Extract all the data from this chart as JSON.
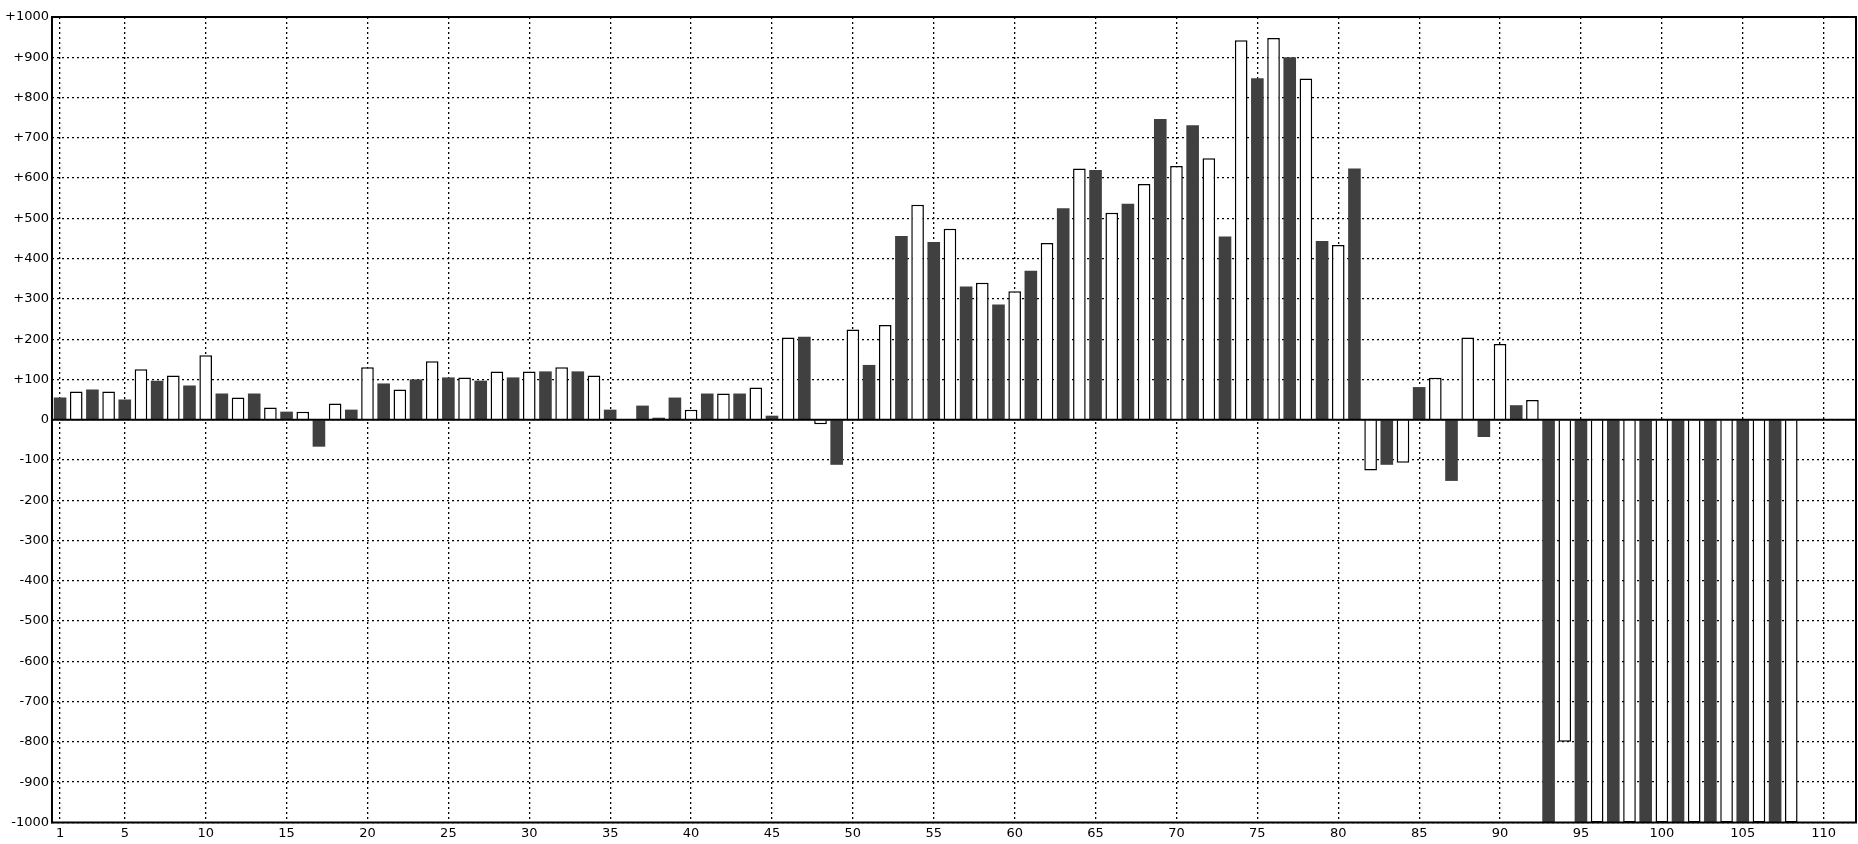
{
  "chart_data": {
    "type": "bar",
    "x": [
      1,
      2,
      3,
      4,
      5,
      6,
      7,
      8,
      9,
      10,
      11,
      12,
      13,
      14,
      15,
      16,
      17,
      18,
      19,
      20,
      21,
      22,
      23,
      24,
      25,
      26,
      27,
      28,
      29,
      30,
      31,
      32,
      33,
      34,
      35,
      36,
      37,
      38,
      39,
      40,
      41,
      42,
      43,
      44,
      45,
      46,
      47,
      48,
      49,
      50,
      51,
      52,
      53,
      54,
      55,
      56,
      57,
      58,
      59,
      60,
      61,
      62,
      63,
      64,
      65,
      66,
      67,
      68,
      69,
      70,
      71,
      72,
      73,
      74,
      75,
      76,
      77,
      78,
      79,
      80,
      81,
      82,
      83,
      84,
      85,
      86,
      87,
      88,
      89,
      90,
      91,
      92,
      93,
      94,
      95,
      96,
      97,
      98,
      99,
      100,
      101,
      102,
      103,
      104,
      105,
      106,
      107,
      108
    ],
    "values": [
      55,
      70,
      75,
      70,
      50,
      125,
      97,
      110,
      85,
      160,
      65,
      55,
      65,
      30,
      20,
      20,
      -67,
      40,
      25,
      130,
      90,
      75,
      100,
      145,
      105,
      105,
      97,
      120,
      105,
      120,
      120,
      130,
      120,
      110,
      25,
      null,
      35,
      5,
      55,
      25,
      65,
      65,
      65,
      80,
      10,
      204,
      206,
      -11,
      -112,
      224,
      136,
      235,
      456,
      534,
      441,
      474,
      331,
      340,
      286,
      319,
      370,
      439,
      525,
      624,
      620,
      514,
      536,
      585,
      747,
      630,
      731,
      649,
      455,
      942,
      848,
      948,
      900,
      847,
      444,
      434,
      624,
      -126,
      -112,
      -107,
      81,
      104,
      -152,
      204,
      -43,
      188,
      36,
      49,
      -1000,
      -800,
      -1000,
      -1000,
      -1000,
      -1000,
      -1000,
      -1000,
      -1000,
      -1000,
      -1000,
      -1000,
      -1000,
      -1000,
      -1000,
      -1000
    ],
    "colors": [
      "#404040",
      "#ffffff",
      "#404040",
      "#ffffff",
      "#404040",
      "#ffffff",
      "#404040",
      "#ffffff",
      "#404040",
      "#ffffff",
      "#404040",
      "#ffffff",
      "#404040",
      "#ffffff",
      "#404040",
      "#ffffff",
      "#404040",
      "#ffffff",
      "#404040",
      "#ffffff",
      "#404040",
      "#ffffff",
      "#404040",
      "#ffffff",
      "#404040",
      "#ffffff",
      "#404040",
      "#ffffff",
      "#404040",
      "#ffffff",
      "#404040",
      "#ffffff",
      "#404040",
      "#ffffff",
      "#404040",
      "#ffffff",
      "#404040",
      "#404040",
      "#404040",
      "#ffffff",
      "#404040",
      "#ffffff",
      "#404040",
      "#ffffff",
      "#404040",
      "#ffffff",
      "#404040",
      "#ffffff",
      "#404040",
      "#ffffff",
      "#404040",
      "#ffffff",
      "#404040",
      "#ffffff",
      "#404040",
      "#ffffff",
      "#404040",
      "#ffffff",
      "#404040",
      "#ffffff",
      "#404040",
      "#ffffff",
      "#404040",
      "#ffffff",
      "#404040",
      "#ffffff",
      "#404040",
      "#ffffff",
      "#404040",
      "#ffffff",
      "#404040",
      "#ffffff",
      "#404040",
      "#ffffff",
      "#404040",
      "#ffffff",
      "#404040",
      "#ffffff",
      "#404040",
      "#ffffff",
      "#404040",
      "#ffffff",
      "#404040",
      "#ffffff",
      "#404040",
      "#ffffff",
      "#404040",
      "#ffffff",
      "#404040",
      "#ffffff",
      "#404040",
      "#ffffff",
      "#404040",
      "#ffffff",
      "#404040",
      "#ffffff",
      "#404040",
      "#ffffff",
      "#404040",
      "#ffffff",
      "#404040",
      "#ffffff",
      "#404040",
      "#ffffff",
      "#404040",
      "#ffffff",
      "#404040",
      "#ffffff"
    ],
    "xlim": [
      0.5,
      112
    ],
    "xticks": [
      1,
      5,
      10,
      15,
      20,
      25,
      30,
      35,
      40,
      45,
      50,
      55,
      60,
      65,
      70,
      75,
      80,
      85,
      90,
      95,
      100,
      105,
      110
    ],
    "ylim": [
      -1000,
      1000
    ],
    "yticks": [
      {
        "value": -1000,
        "label": "-1000"
      },
      {
        "value": -900,
        "label": "-900"
      },
      {
        "value": -800,
        "label": "-800"
      },
      {
        "value": -700,
        "label": "-700"
      },
      {
        "value": -600,
        "label": "-600"
      },
      {
        "value": -500,
        "label": "-500"
      },
      {
        "value": -400,
        "label": "-400"
      },
      {
        "value": -300,
        "label": "-300"
      },
      {
        "value": -200,
        "label": "-200"
      },
      {
        "value": -100,
        "label": "-100"
      },
      0,
      {
        "value": 100,
        "label": "+100"
      },
      {
        "value": 200,
        "label": "+200"
      },
      {
        "value": 300,
        "label": "+300"
      },
      {
        "value": 400,
        "label": "+400"
      },
      {
        "value": 500,
        "label": "+500"
      },
      {
        "value": 600,
        "label": "+600"
      },
      {
        "value": 700,
        "label": "+700"
      },
      {
        "value": 800,
        "label": "+800"
      },
      {
        "value": 900,
        "label": "+900"
      },
      {
        "value": 1000,
        "label": "+1000"
      }
    ],
    "grid": true,
    "line_style": "dotted"
  }
}
